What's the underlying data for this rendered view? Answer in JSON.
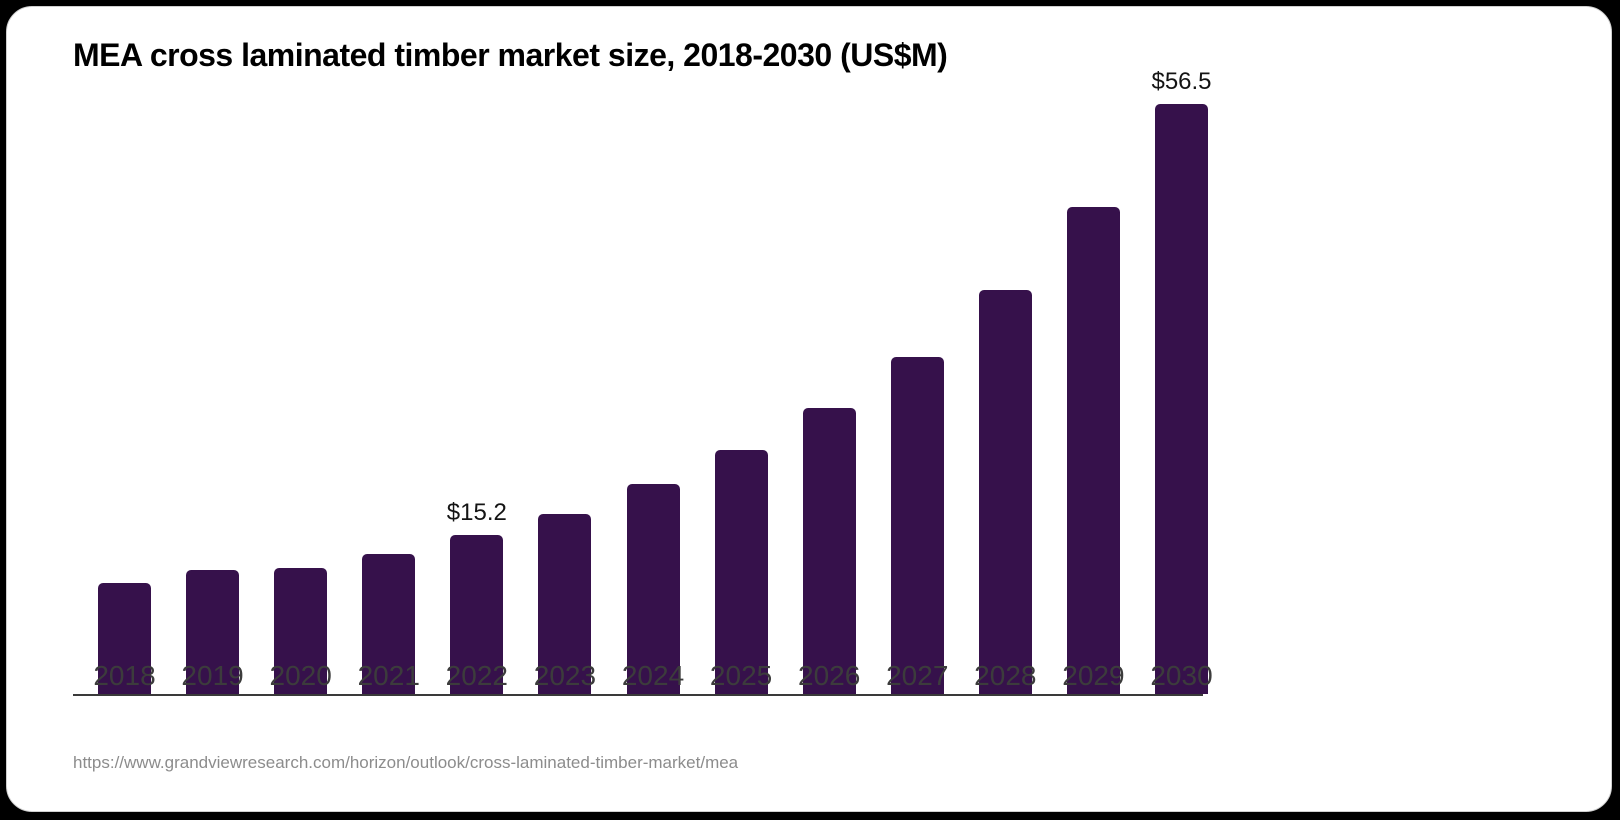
{
  "page": {
    "outer_background": "#000000",
    "card_background": "#ffffff",
    "card_border_color": "#cfcfcf"
  },
  "chart_data": {
    "type": "bar",
    "title": "MEA cross laminated timber market size, 2018-2030 (US$M)",
    "categories": [
      "2018",
      "2019",
      "2020",
      "2021",
      "2022",
      "2023",
      "2024",
      "2025",
      "2026",
      "2027",
      "2028",
      "2029",
      "2030"
    ],
    "values": [
      10.6,
      11.9,
      12.1,
      13.4,
      15.2,
      17.2,
      20.1,
      23.4,
      27.4,
      32.3,
      38.7,
      46.6,
      56.5
    ],
    "value_labels": [
      {
        "index": 4,
        "text": "$15.2"
      },
      {
        "index": 12,
        "text": "$56.5"
      }
    ],
    "bar_color": "#36114B",
    "axis_line_color": "#3a3a3a",
    "tick_label_color": "#3c3c3c",
    "xlabel": "",
    "ylabel": "",
    "ylim": [
      0,
      56.5
    ],
    "grid": false,
    "legend": false
  },
  "source": {
    "url": "https://www.grandviewresearch.com/horizon/outlook/cross-laminated-timber-market/mea"
  }
}
